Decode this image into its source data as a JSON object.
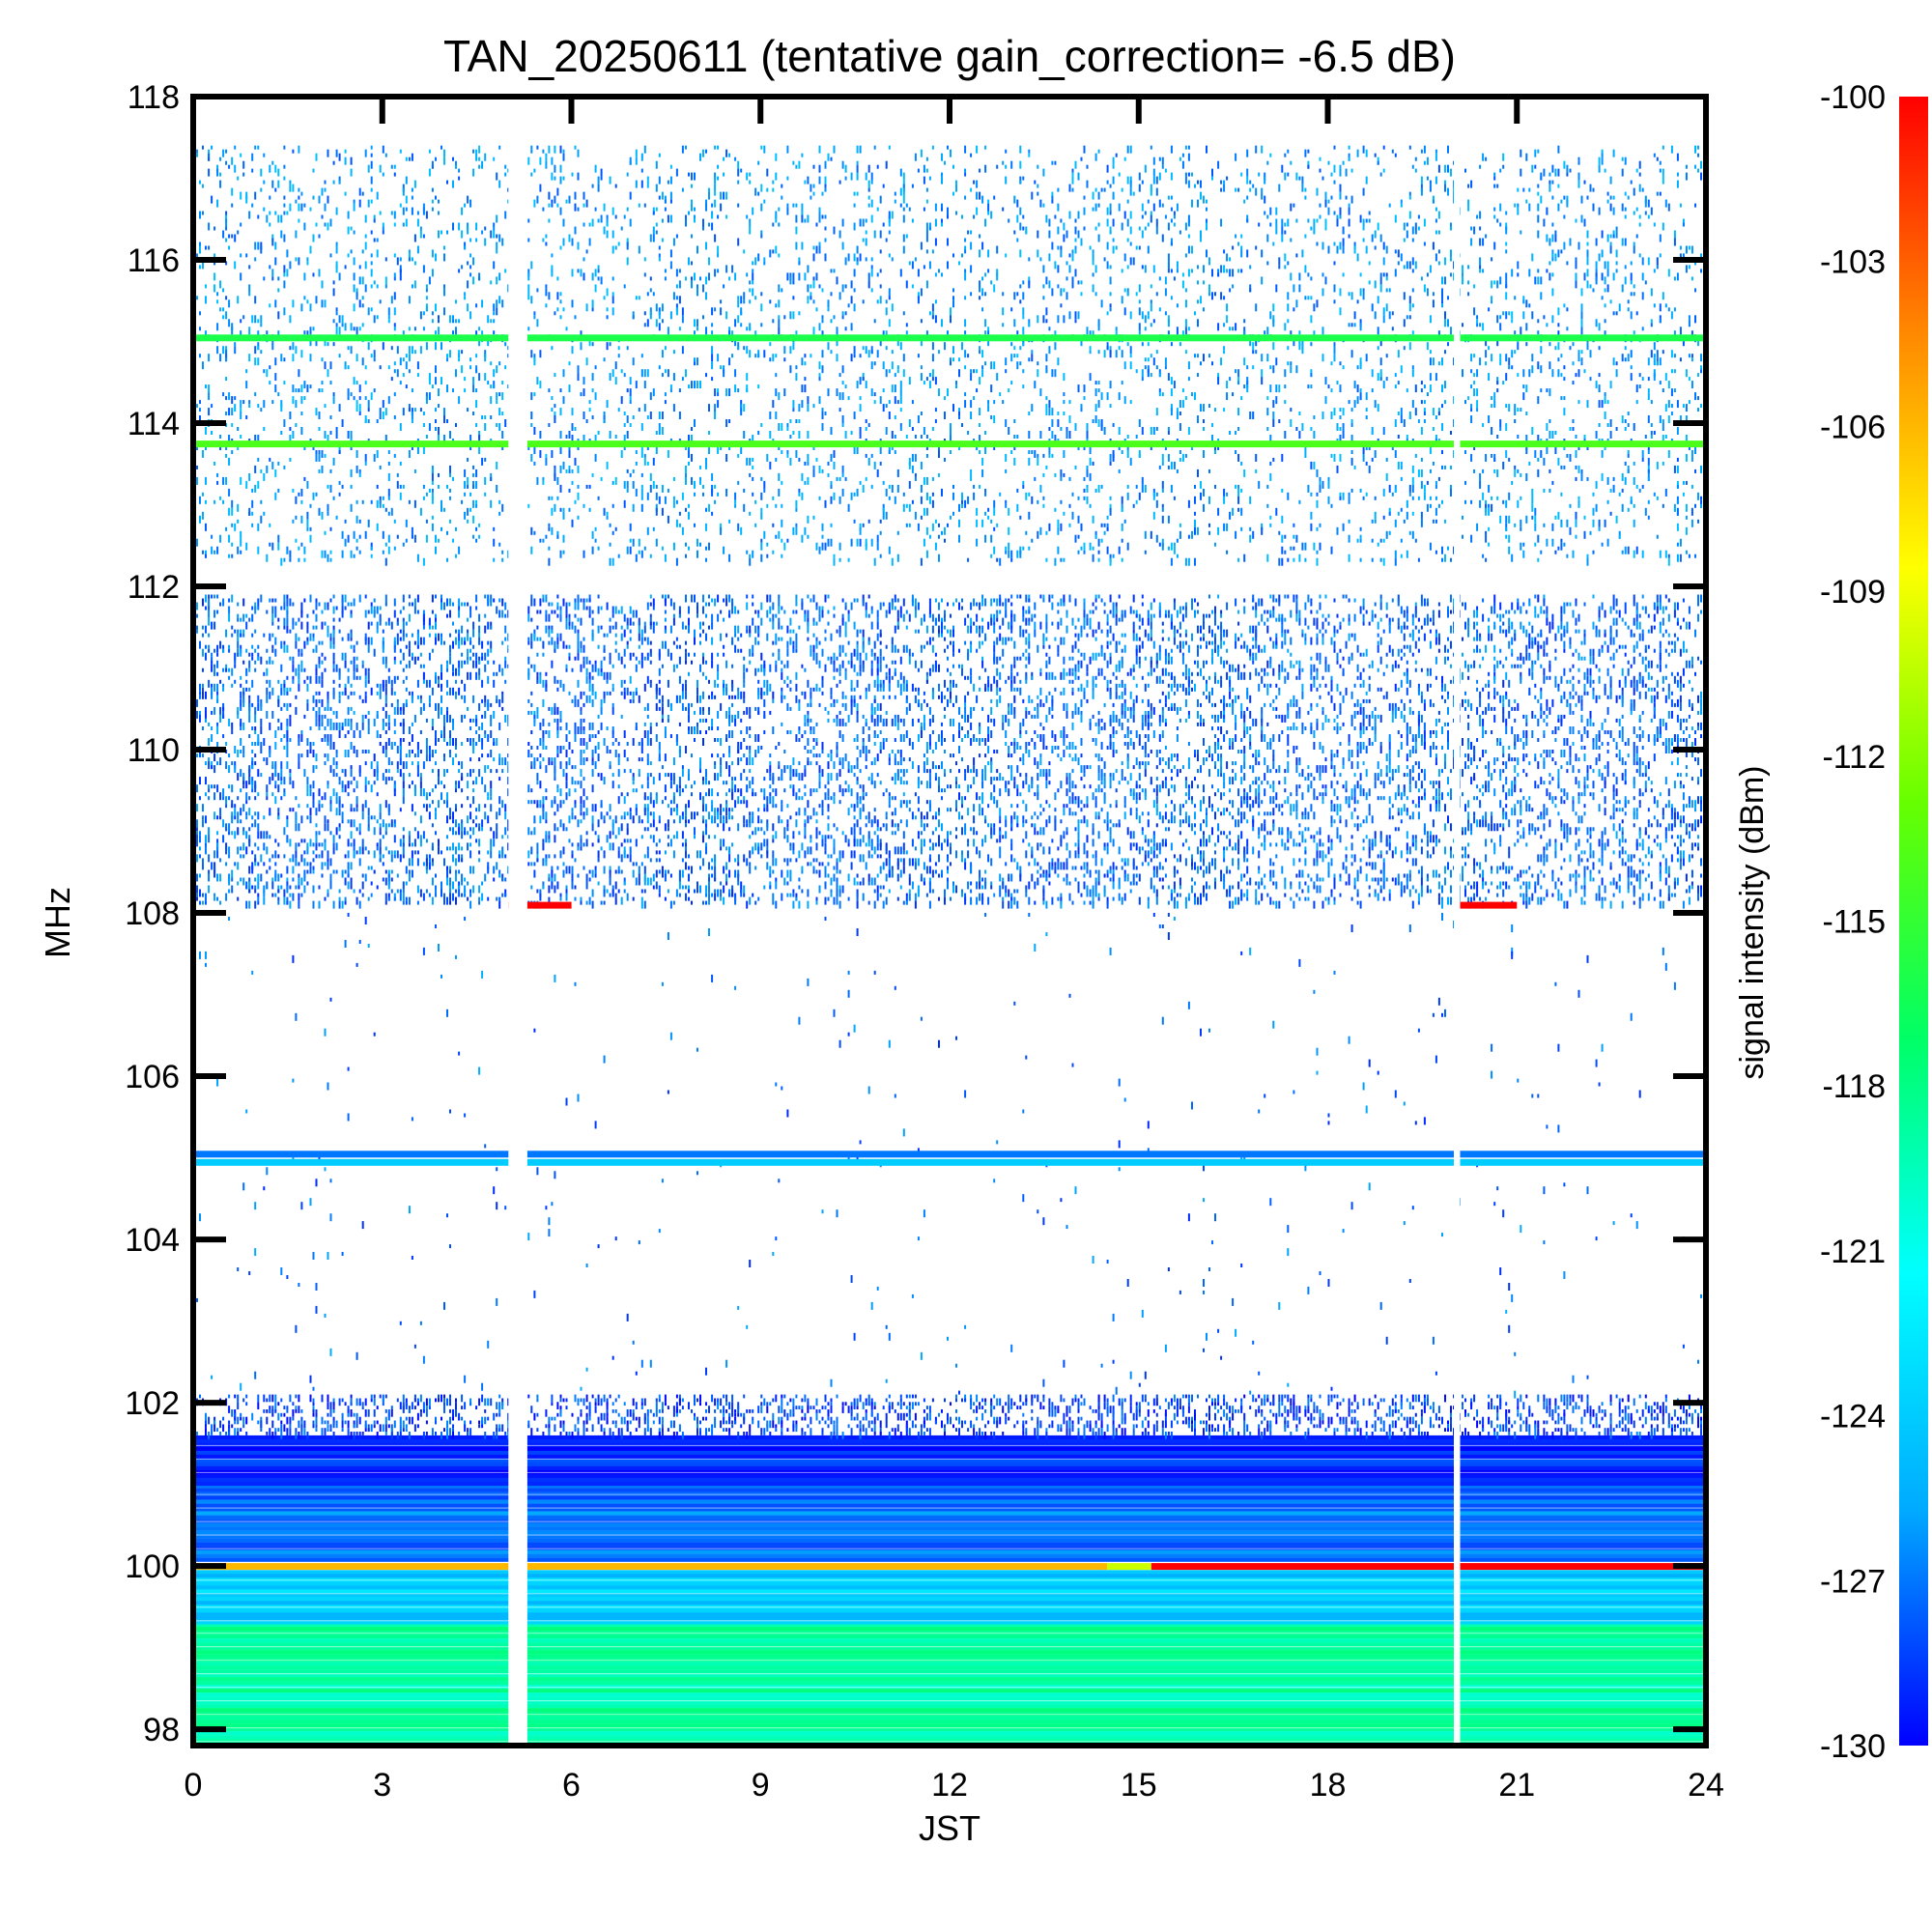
{
  "chart_data": {
    "type": "heatmap",
    "title": "TAN_20250611 (tentative gain_correction= -6.5 dB)",
    "xlabel": "JST",
    "ylabel": "MHz",
    "colorbar_label": "signal intensity (dBm)",
    "xlim": [
      0,
      24
    ],
    "ylim": [
      97.8,
      118
    ],
    "x_ticks": [
      "0",
      "3",
      "6",
      "9",
      "12",
      "15",
      "18",
      "21",
      "24"
    ],
    "y_ticks": [
      "98",
      "100",
      "102",
      "104",
      "106",
      "108",
      "110",
      "112",
      "114",
      "116",
      "118"
    ],
    "colorbar_range": [
      -130,
      -100
    ],
    "colorbar_ticks": [
      "-100",
      "-103",
      "-106",
      "-109",
      "-112",
      "-115",
      "-118",
      "-121",
      "-124",
      "-127",
      "-130"
    ],
    "colormap": [
      "#0000ff",
      "#00aaff",
      "#00ffff",
      "#00ff66",
      "#66ff00",
      "#ffff00",
      "#ff8800",
      "#ff0000"
    ],
    "data_gaps_jst": [
      [
        5.0,
        5.3
      ],
      [
        20.0,
        20.1
      ]
    ],
    "background_bands": [
      {
        "f_min": 97.8,
        "f_max": 99.3,
        "dbm": -119,
        "desc": "green floor"
      },
      {
        "f_min": 99.3,
        "f_max": 99.95,
        "dbm": -124,
        "desc": "cyan"
      },
      {
        "f_min": 100.1,
        "f_max": 101.0,
        "dbm": -127,
        "desc": "light blue"
      },
      {
        "f_min": 101.0,
        "f_max": 101.6,
        "dbm": -129,
        "desc": "blue"
      }
    ],
    "persistent_lines": [
      {
        "freq": 100.0,
        "dbm": -106,
        "t_start": 0,
        "t_end": 14.5,
        "desc": "orange carrier"
      },
      {
        "freq": 100.0,
        "dbm": -110,
        "t_start": 14.5,
        "t_end": 15.2,
        "desc": "yellow transition"
      },
      {
        "freq": 100.0,
        "dbm": -100,
        "t_start": 15.2,
        "t_end": 24,
        "desc": "red carrier"
      },
      {
        "freq": 115.05,
        "dbm": -116,
        "t_start": 0,
        "t_end": 24,
        "desc": "green line"
      },
      {
        "freq": 113.75,
        "dbm": -114,
        "t_start": 0,
        "t_end": 24,
        "desc": "yellow-green line"
      },
      {
        "freq": 105.05,
        "dbm": -127,
        "t_start": 0,
        "t_end": 24,
        "desc": "blue line"
      },
      {
        "freq": 104.95,
        "dbm": -124,
        "t_start": 0,
        "t_end": 24,
        "desc": "cyan line"
      },
      {
        "freq": 108.1,
        "dbm": -100,
        "t_start": 5.0,
        "t_end": 6.0,
        "desc": "red short segment"
      },
      {
        "freq": 108.1,
        "dbm": -100,
        "t_start": 20.0,
        "t_end": 21.0,
        "desc": "red short segment"
      }
    ],
    "sparse_regions": [
      {
        "f_min": 112.3,
        "f_max": 117.4,
        "density": 0.1,
        "dbm": -128
      },
      {
        "f_min": 108.1,
        "f_max": 111.9,
        "density": 0.22,
        "dbm": -129
      },
      {
        "f_min": 101.6,
        "f_max": 102.1,
        "density": 0.3,
        "dbm": -130
      },
      {
        "f_min": 102.1,
        "f_max": 108.0,
        "density": 0.006,
        "dbm": -129
      }
    ]
  }
}
